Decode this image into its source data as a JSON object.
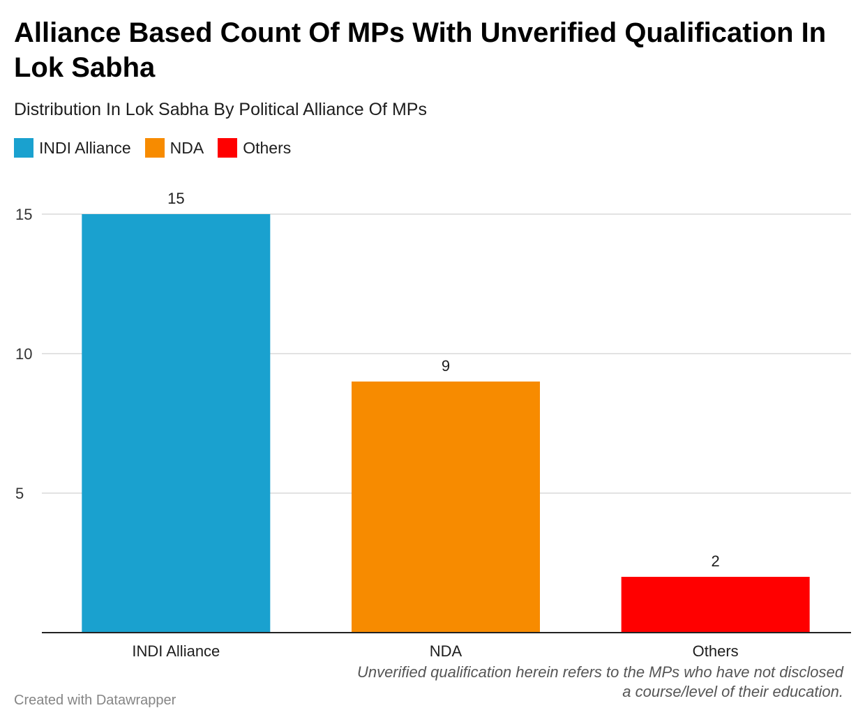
{
  "chart_data": {
    "type": "bar",
    "title": "Alliance Based Count Of MPs With Unverified Qualification In Lok Sabha",
    "subtitle": "Distribution In Lok Sabha By Political Alliance Of MPs",
    "categories": [
      "INDI Alliance",
      "NDA",
      "Others"
    ],
    "values": [
      15,
      9,
      2
    ],
    "colors": [
      "#1aa1cf",
      "#f78b00",
      "#ff0000"
    ],
    "legend": [
      {
        "label": "INDI Alliance",
        "color": "#1aa1cf"
      },
      {
        "label": "NDA",
        "color": "#f78b00"
      },
      {
        "label": "Others",
        "color": "#ff0000"
      }
    ],
    "y_ticks": [
      5,
      10,
      15
    ],
    "ylim": [
      0,
      15
    ],
    "xlabel": "",
    "ylabel": "",
    "grid": true,
    "legend_position": "top-left"
  },
  "note": "Unverified qualification herein refers to the MPs who have not disclosed a course/level of their education.",
  "credit": "Created with Datawrapper"
}
